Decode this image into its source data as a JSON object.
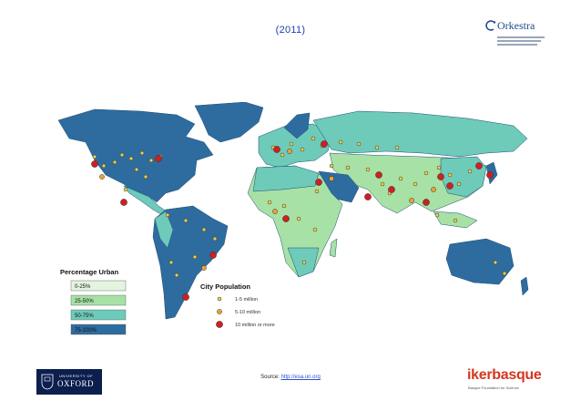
{
  "title": "(2011)",
  "orkestra_logo": {
    "name": "Orkestra",
    "icon": "orkestra-logo-icon"
  },
  "legend_urban": {
    "title": "Percentage Urban",
    "items": [
      {
        "label": "0-25%",
        "color": "#e3f4df"
      },
      {
        "label": "25-50%",
        "color": "#a7e1a6"
      },
      {
        "label": "50-75%",
        "color": "#6ecab9"
      },
      {
        "label": "75-100%",
        "color": "#2e6c9f"
      }
    ]
  },
  "legend_city": {
    "title": "City Population",
    "items": [
      {
        "label": "1-5 million",
        "color": "#f0d24a"
      },
      {
        "label": "5-10 million",
        "color": "#f0a030"
      },
      {
        "label": "10 million or more",
        "color": "#d01f1f"
      }
    ]
  },
  "source": {
    "prefix": "Source:",
    "link": "http://esa.un.org"
  },
  "oxford_logo": {
    "small": "UNIVERSITY OF",
    "big": "OXFORD"
  },
  "ikerbasque_logo": {
    "name": "ikerbasque",
    "tagline": "Basque Foundation for Science"
  }
}
